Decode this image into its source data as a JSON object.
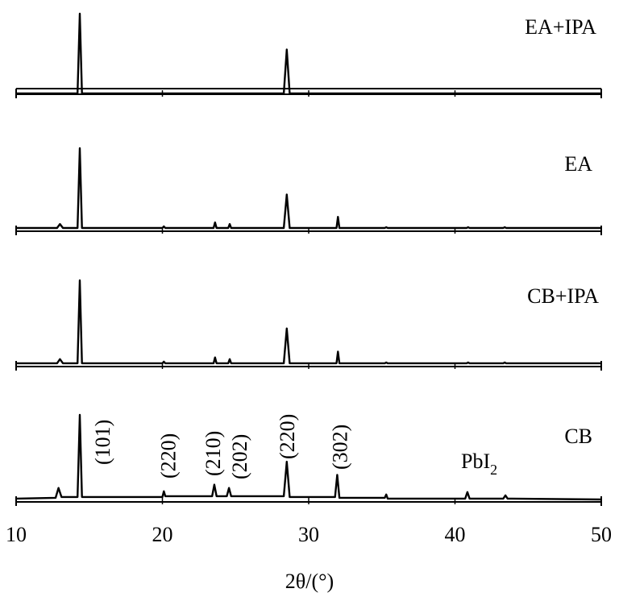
{
  "chart_data": {
    "type": "line",
    "title": "",
    "xlabel": "2θ/(°)",
    "ylabel": "",
    "xlim": [
      10,
      50
    ],
    "xticks": [
      "10",
      "20",
      "30",
      "40",
      "50"
    ],
    "grid": false,
    "series": [
      {
        "name": "EA+IPA",
        "baseline": 0,
        "x": [
          10,
          14.2,
          14.35,
          14.5,
          28.3,
          28.5,
          28.7,
          50
        ],
        "y": [
          0,
          0,
          100,
          0,
          0,
          55,
          0,
          0
        ]
      },
      {
        "name": "EA",
        "baseline": 3,
        "x": [
          10,
          12.8,
          13.0,
          13.2,
          14.2,
          14.35,
          14.5,
          20.0,
          20.1,
          20.2,
          23.5,
          23.6,
          23.7,
          24.5,
          24.6,
          24.7,
          28.3,
          28.5,
          28.7,
          31.9,
          32.0,
          32.1,
          35.2,
          35.3,
          35.4,
          40.8,
          40.9,
          41.0,
          43.3,
          43.4,
          43.5,
          50
        ],
        "y": [
          3,
          3,
          8,
          3,
          3,
          103,
          3,
          3,
          5,
          3,
          3,
          10,
          3,
          3,
          8,
          3,
          3,
          45,
          3,
          3,
          17,
          3,
          3,
          4,
          3,
          3,
          4,
          3,
          3,
          4,
          3,
          3
        ]
      },
      {
        "name": "CB+IPA",
        "baseline": 3,
        "x": [
          10,
          12.8,
          13.0,
          13.2,
          14.2,
          14.35,
          14.5,
          20.0,
          20.1,
          20.2,
          23.5,
          23.6,
          23.7,
          24.5,
          24.6,
          24.7,
          28.3,
          28.5,
          28.7,
          31.9,
          32.0,
          32.1,
          35.2,
          35.3,
          35.4,
          40.8,
          40.9,
          41.0,
          43.3,
          43.4,
          43.5,
          50
        ],
        "y": [
          3,
          3,
          8,
          3,
          3,
          103,
          3,
          3,
          5,
          3,
          3,
          10,
          3,
          3,
          8,
          3,
          3,
          45,
          3,
          3,
          17,
          3,
          3,
          4,
          3,
          3,
          4,
          3,
          3,
          4,
          3,
          3
        ]
      },
      {
        "name": "CB",
        "baseline": 5,
        "x": [
          10,
          12.7,
          12.9,
          13.1,
          14.2,
          14.35,
          14.5,
          20.0,
          20.1,
          20.2,
          23.4,
          23.55,
          23.7,
          24.4,
          24.55,
          24.7,
          28.3,
          28.5,
          28.7,
          31.8,
          31.95,
          32.1,
          35.2,
          35.3,
          35.4,
          40.7,
          40.85,
          41.0,
          43.3,
          43.45,
          43.6,
          50
        ],
        "y": [
          3,
          4,
          16,
          5,
          5,
          105,
          5,
          5,
          12,
          6,
          6,
          20,
          6,
          6,
          16,
          6,
          6,
          48,
          5,
          5,
          32,
          4,
          4,
          8,
          3,
          3,
          11,
          3,
          3,
          7,
          3,
          2
        ]
      }
    ],
    "peak_labels": [
      {
        "text": "(101)",
        "x": 14.35
      },
      {
        "text": "(220)",
        "x": 20.1
      },
      {
        "text": "(210)",
        "x": 23.6
      },
      {
        "text": "(202)",
        "x": 24.6
      },
      {
        "text": "(220)",
        "x": 28.5
      },
      {
        "text": "(302)",
        "x": 32.0
      }
    ],
    "annotation": {
      "text": "PbI",
      "sub": "2",
      "x": 40.9
    }
  }
}
